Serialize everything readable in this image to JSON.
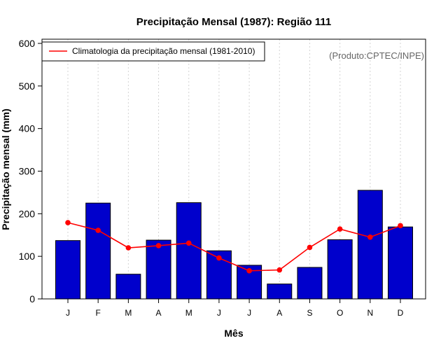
{
  "chart_data": {
    "type": "bar",
    "title": "Precipitação Mensal (1987): Região 111",
    "xlabel": "Mês",
    "ylabel": "Precipitação mensal (mm)",
    "ylim": [
      0,
      600
    ],
    "yticks": [
      0,
      100,
      200,
      300,
      400,
      500,
      600
    ],
    "categories": [
      "J",
      "F",
      "M",
      "A",
      "M",
      "J",
      "J",
      "A",
      "S",
      "O",
      "N",
      "D"
    ],
    "values": [
      137,
      225,
      58,
      138,
      226,
      113,
      79,
      35,
      74,
      139,
      255,
      169
    ],
    "line_series": {
      "name": "Climatologia da precipitação mensal (1981-2010)",
      "values": [
        179,
        161,
        120,
        125,
        131,
        96,
        66,
        68,
        121,
        164,
        145,
        172
      ]
    },
    "legend_position": "top-left",
    "source_note": "(Produto:CPTEC/INPE)",
    "grid": "vertical dotted",
    "colors": {
      "bar_fill": "#0000cc",
      "bar_stroke": "#000000",
      "line": "#ff0000",
      "grid": "#d3d3d3"
    }
  }
}
